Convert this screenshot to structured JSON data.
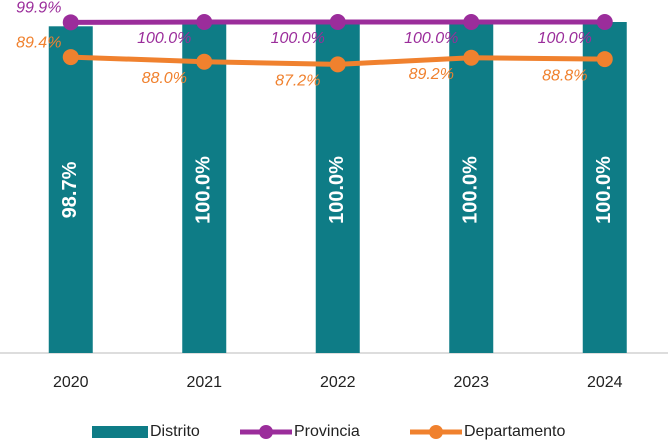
{
  "chart_data": {
    "type": "bar_line",
    "categories": [
      "2020",
      "2021",
      "2022",
      "2023",
      "2024"
    ],
    "ylim": [
      0,
      100
    ],
    "series": [
      {
        "name": "Distrito",
        "type": "bar",
        "color": "#0e7c86",
        "values": [
          98.7,
          100.0,
          100.0,
          100.0,
          100.0
        ],
        "value_labels": [
          "98.7%",
          "100.0%",
          "100.0%",
          "100.0%",
          "100.0%"
        ]
      },
      {
        "name": "Provincia",
        "type": "line",
        "color": "#9b2d9b",
        "values": [
          99.9,
          100.0,
          100.0,
          100.0,
          100.0
        ],
        "value_labels": [
          "99.9%",
          "100.0%",
          "100.0%",
          "100.0%",
          "100.0%"
        ]
      },
      {
        "name": "Departamento",
        "type": "line",
        "color": "#f0812e",
        "values": [
          89.4,
          88.0,
          87.2,
          89.2,
          88.8
        ],
        "value_labels": [
          "89.4%",
          "88.0%",
          "87.2%",
          "89.2%",
          "88.8%"
        ]
      }
    ]
  }
}
